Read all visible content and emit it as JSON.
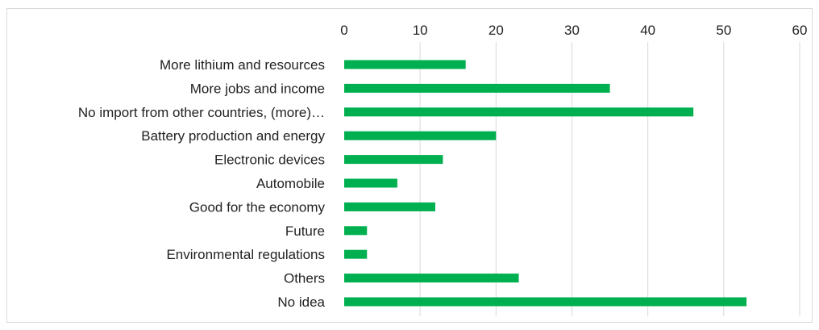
{
  "chart_data": {
    "type": "bar",
    "orientation": "horizontal",
    "categories": [
      "More lithium and resources",
      "More jobs and income",
      "No import from other countries, (more)…",
      "Battery production and energy",
      "Electronic devices",
      "Automobile",
      "Good for the economy",
      "Future",
      "Environmental regulations",
      "Others",
      "No idea"
    ],
    "values": [
      16,
      35,
      46,
      20,
      13,
      7,
      12,
      3,
      3,
      23,
      53
    ],
    "xlim": [
      0,
      60
    ],
    "xticks": [
      "0",
      "10",
      "20",
      "30",
      "40",
      "50",
      "60"
    ],
    "x_axis_position": "top",
    "grid": "vertical",
    "bar_color": "#00b050",
    "title": "",
    "xlabel": "",
    "ylabel": ""
  }
}
